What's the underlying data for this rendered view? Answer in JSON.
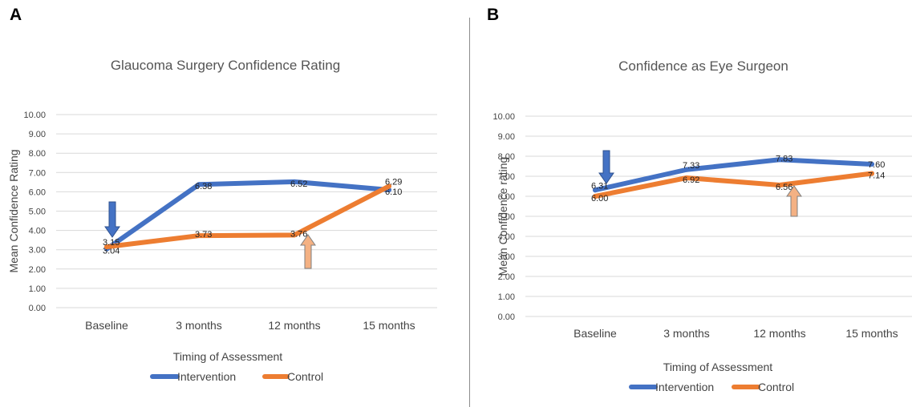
{
  "panels": [
    {
      "letter": "A",
      "chart_data": {
        "type": "line",
        "title": "Glaucoma Surgery Confidence Rating",
        "xlabel": "Timing of Assessment",
        "ylabel": "Mean Confidence Rating",
        "categories": [
          "Baseline",
          "3 months",
          "12 months",
          "15 months"
        ],
        "ylim": [
          0,
          10
        ],
        "yticks": [
          "0.00",
          "1.00",
          "2.00",
          "3.00",
          "4.00",
          "5.00",
          "6.00",
          "7.00",
          "8.00",
          "9.00",
          "10.00"
        ],
        "grid": true,
        "legend_position": "bottom",
        "series": [
          {
            "name": "Intervention",
            "color": "#4472C4",
            "values": [
              3.04,
              6.38,
              6.52,
              6.1
            ],
            "labels": [
              "3.04",
              "6.38",
              "6.52",
              "6.10"
            ]
          },
          {
            "name": "Control",
            "color": "#ED7D31",
            "values": [
              3.15,
              3.73,
              3.76,
              6.29
            ],
            "labels": [
              "3.15",
              "3.73",
              "3.76",
              "6.29"
            ]
          }
        ],
        "annotations": [
          {
            "type": "arrow-down",
            "color": "#4472C4",
            "category": "Baseline"
          },
          {
            "type": "arrow-up",
            "color": "#F4B183",
            "category": "12 months"
          }
        ]
      }
    },
    {
      "letter": "B",
      "chart_data": {
        "type": "line",
        "title": "Confidence as Eye Surgeon",
        "xlabel": "Timing of Assessment",
        "ylabel": "Mean Confidence rating",
        "categories": [
          "Baseline",
          "3 months",
          "12 months",
          "15 months"
        ],
        "ylim": [
          0,
          10
        ],
        "yticks": [
          "0.00",
          "1.00",
          "2.00",
          "3.00",
          "4.00",
          "5.00",
          "6.00",
          "7.00",
          "8.00",
          "9.00",
          "10.00"
        ],
        "grid": true,
        "legend_position": "bottom",
        "series": [
          {
            "name": "Intervention",
            "color": "#4472C4",
            "values": [
              6.31,
              7.33,
              7.83,
              7.6
            ],
            "labels": [
              "6.31",
              "7.33",
              "7.83",
              "7.60"
            ]
          },
          {
            "name": "Control",
            "color": "#ED7D31",
            "values": [
              6.0,
              6.92,
              6.56,
              7.14
            ],
            "labels": [
              "6.00",
              "6.92",
              "6.56",
              "7.14"
            ]
          }
        ],
        "annotations": [
          {
            "type": "arrow-down",
            "color": "#4472C4",
            "category": "Baseline"
          },
          {
            "type": "arrow-up",
            "color": "#F4B183",
            "category": "12 months"
          }
        ]
      }
    }
  ]
}
